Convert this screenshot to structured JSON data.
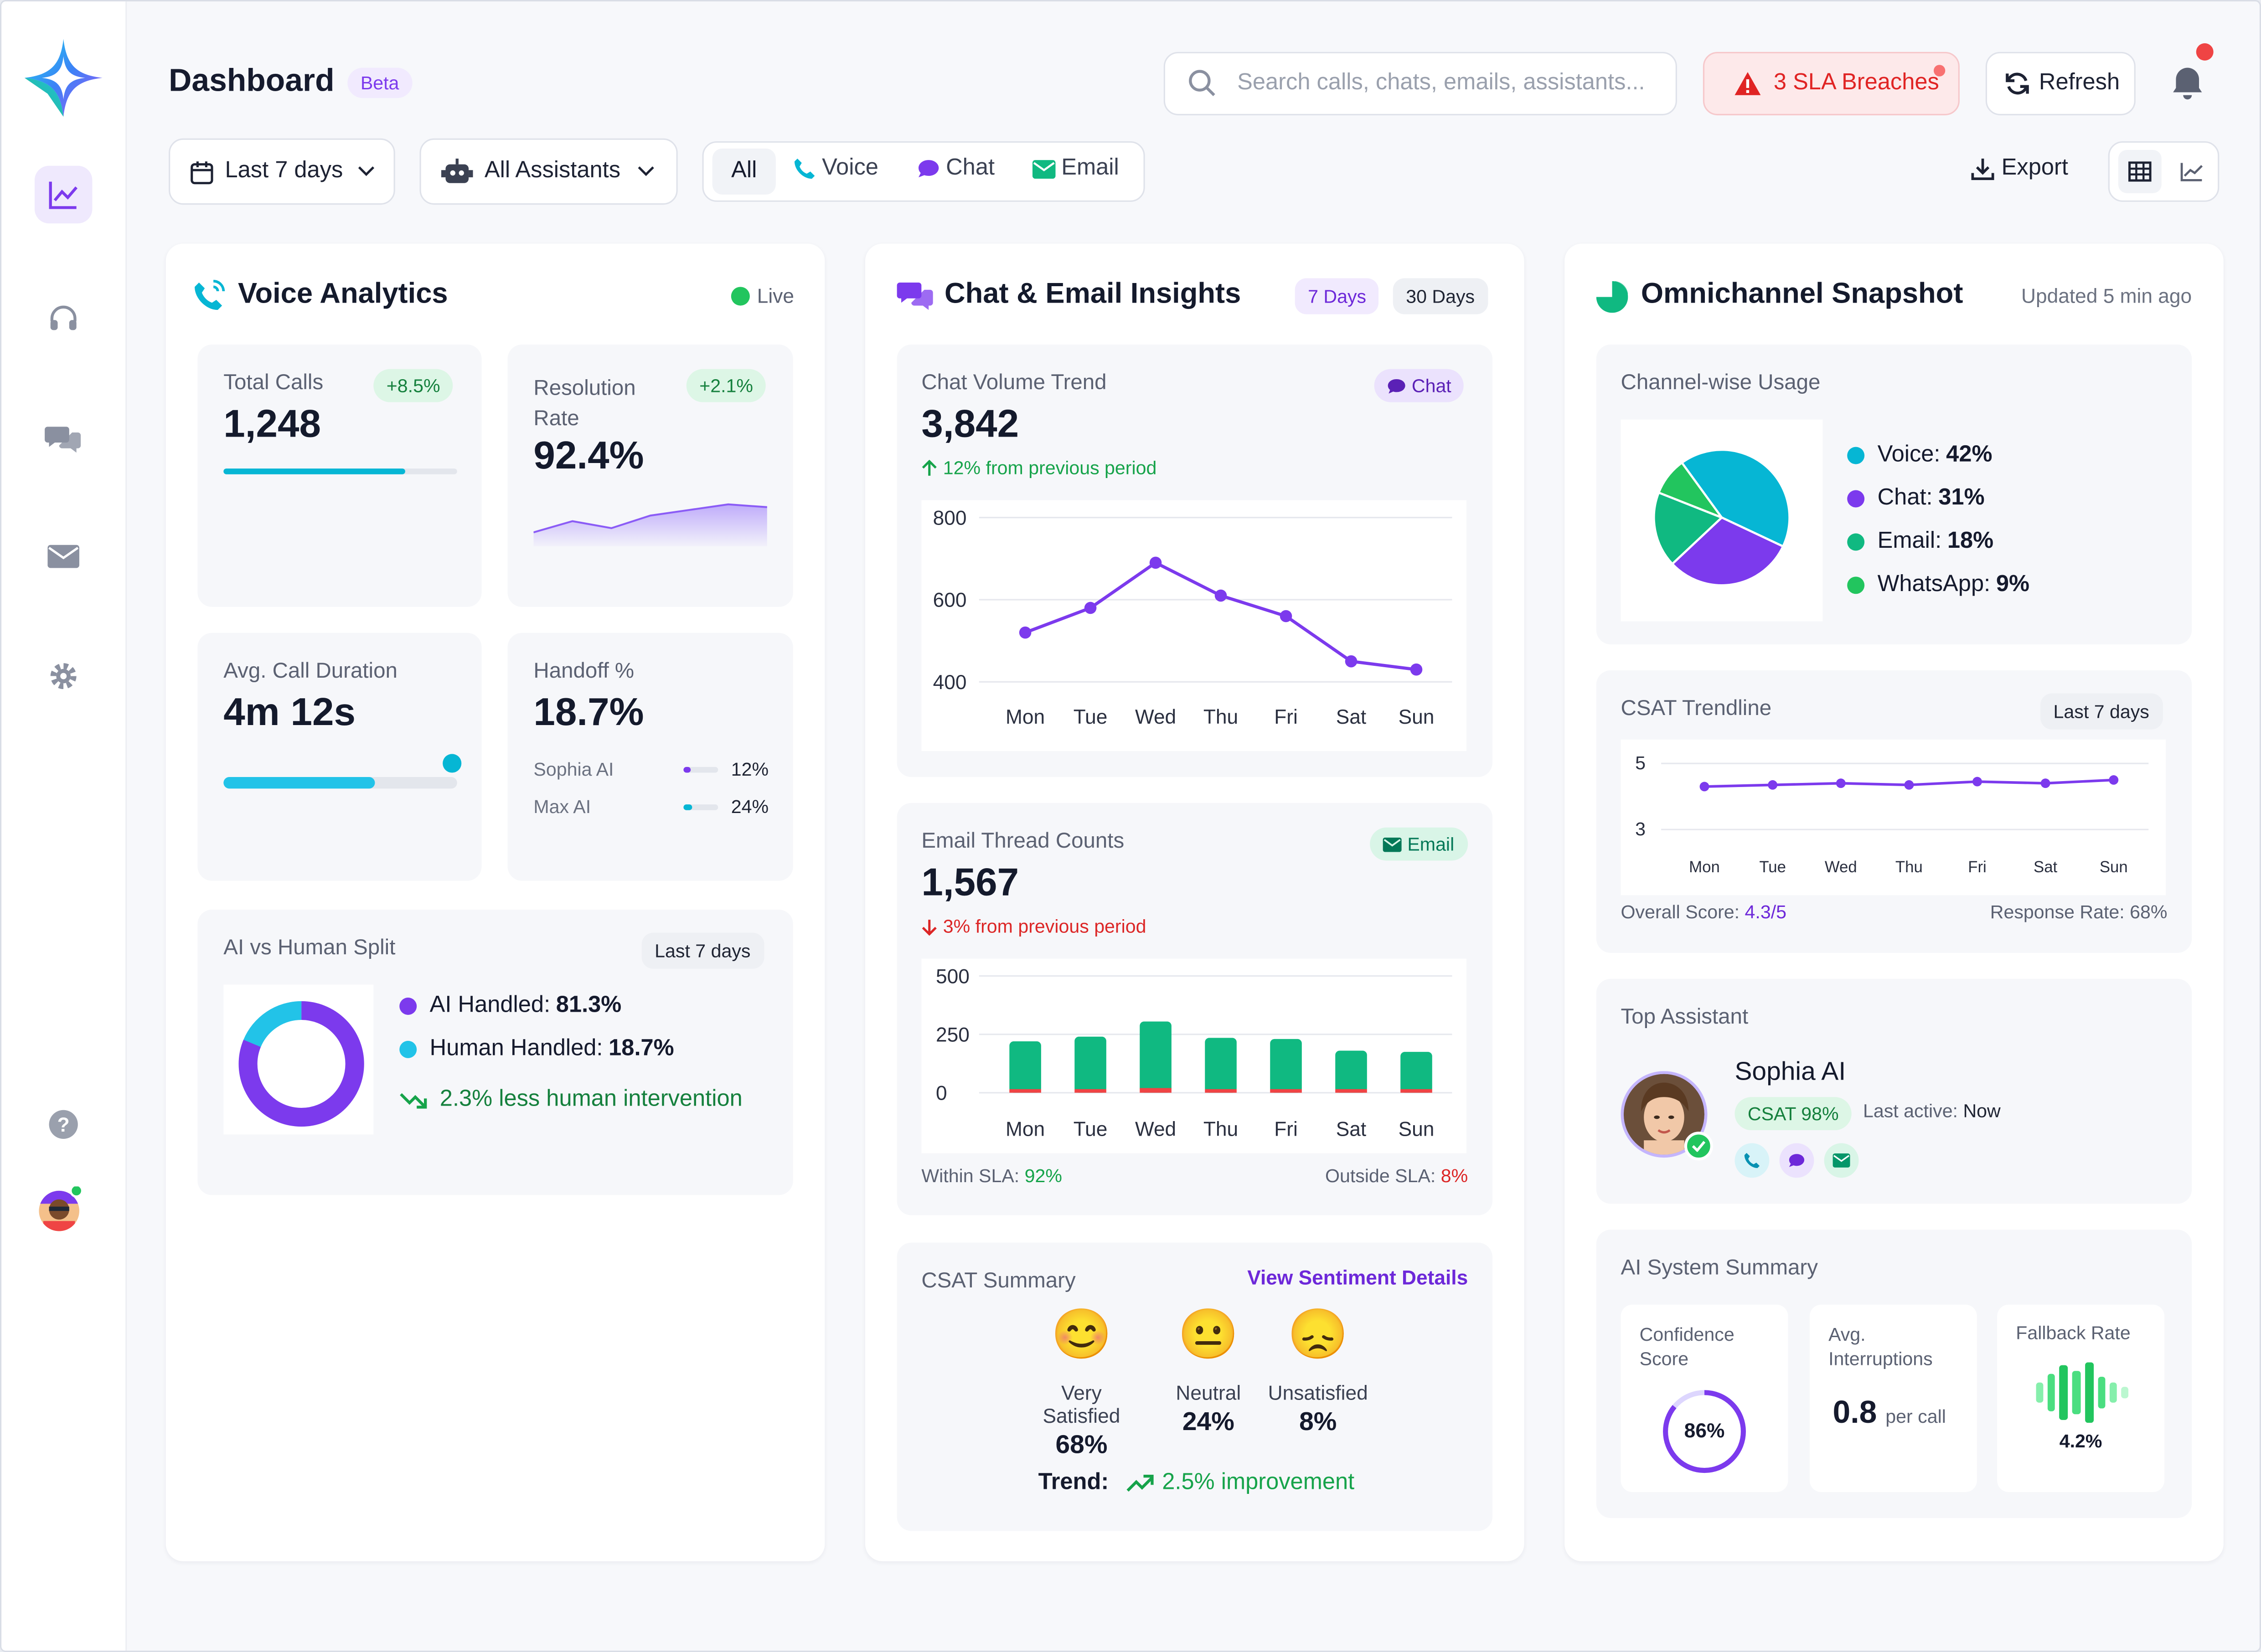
{
  "header": {
    "title": "Dashboard",
    "beta": "Beta",
    "search_placeholder": "Search calls, chats, emails, assistants...",
    "sla": "3 SLA Breaches",
    "refresh": "Refresh"
  },
  "filters": {
    "date": "Last 7 days",
    "assistants": "All Assistants",
    "channels": [
      "All",
      "Voice",
      "Chat",
      "Email"
    ],
    "export": "Export"
  },
  "voice": {
    "title": "Voice Analytics",
    "live": "Live",
    "total_calls_label": "Total Calls",
    "total_calls": "1,248",
    "total_calls_change": "+8.5%",
    "total_calls_progress": 0.78,
    "resolution_label": "Resolution Rate",
    "resolution": "92.4%",
    "resolution_change": "+2.1%",
    "avg_duration_label": "Avg. Call Duration",
    "avg_duration": "4m 12s",
    "avg_duration_progress": 0.65,
    "handoff_label": "Handoff %",
    "handoff": "18.7%",
    "handoff_rows": [
      {
        "name": "Sophia AI",
        "value": "12%",
        "fraction": 0.12
      },
      {
        "name": "Max AI",
        "value": "24%",
        "fraction": 0.24
      }
    ],
    "split_title": "AI vs Human Split",
    "split_period": "Last 7 days",
    "ai_label": "AI Handled: ",
    "ai_value": "81.3%",
    "human_label": "Human Handled: ",
    "human_value": "18.7%",
    "split_fraction_ai": 0.813,
    "trend_text": "2.3% less human intervention"
  },
  "chat": {
    "title": "Chat & Email Insights",
    "range_7": "7 Days",
    "range_30": "30 Days",
    "volume_label": "Chat Volume Trend",
    "volume_badge": "Chat",
    "volume": "3,842",
    "volume_change": "12% from previous period",
    "email_label": "Email Thread Counts",
    "email_badge": "Email",
    "email_value": "1,567",
    "email_change": "3% from previous period",
    "within_sla_label": "Within SLA: ",
    "within_sla": "92%",
    "outside_sla_label": "Outside SLA: ",
    "outside_sla": "8%",
    "csat_title": "CSAT Summary",
    "csat_link": "View Sentiment Details",
    "csat_items": [
      {
        "label": "Very Satisfied",
        "value": "68%",
        "emoji": "😊"
      },
      {
        "label": "Neutral",
        "value": "24%",
        "emoji": "😐"
      },
      {
        "label": "Unsatisfied",
        "value": "8%",
        "emoji": "😞"
      }
    ],
    "trend_label": "Trend:",
    "trend_value": "2.5% improvement"
  },
  "omni": {
    "title": "Omnichannel Snapshot",
    "updated": "Updated 5 min ago",
    "usage_title": "Channel-wise Usage",
    "usage": [
      {
        "name": "Voice: ",
        "value": "42%",
        "pct": 42,
        "color": "#06b6d4"
      },
      {
        "name": "Chat: ",
        "value": "31%",
        "pct": 31,
        "color": "#7c3aed"
      },
      {
        "name": "Email: ",
        "value": "18%",
        "pct": 18,
        "color": "#10b981"
      },
      {
        "name": "WhatsApp: ",
        "value": "9%",
        "pct": 9,
        "color": "#22c55e"
      }
    ],
    "csat_title": "CSAT Trendline",
    "csat_period": "Last 7 days",
    "overall_label": "Overall Score: ",
    "overall_value": "4.3/5",
    "response_rate": "Response Rate: 68%",
    "top_title": "Top Assistant",
    "top_name": "Sophia AI",
    "top_csat": "CSAT 98%",
    "last_active_label": "Last active: ",
    "last_active": "Now",
    "summary_title": "AI System Summary",
    "confidence_label": "Confidence Score",
    "confidence": "86%",
    "confidence_fraction": 0.86,
    "interrupt_label": "Avg. Interruptions",
    "interrupt_value": "0.8",
    "interrupt_unit": "per call",
    "fallback_label": "Fallback Rate",
    "fallback": "4.2%"
  },
  "chart_data": [
    {
      "type": "area",
      "title": "",
      "note": "Resolution Rate sparkline (no axes shown)",
      "values": [
        60,
        68,
        63,
        72,
        76,
        80,
        78
      ]
    },
    {
      "type": "line",
      "title": "Chat Volume Trend",
      "categories": [
        "Mon",
        "Tue",
        "Wed",
        "Thu",
        "Fri",
        "Sat",
        "Sun"
      ],
      "series": [
        {
          "values": [
            520,
            580,
            690,
            610,
            560,
            450,
            430
          ]
        }
      ],
      "ylim": [
        400,
        800
      ],
      "yticks": [
        800,
        600,
        400
      ],
      "color": "#7c3aed"
    },
    {
      "type": "bar",
      "title": "Email Thread Counts",
      "categories": [
        "Mon",
        "Tue",
        "Wed",
        "Thu",
        "Fri",
        "Sat",
        "Sun"
      ],
      "series": [
        {
          "values": [
            220,
            240,
            305,
            235,
            230,
            180,
            175
          ],
          "color": "#10b981"
        },
        {
          "values": [
            12,
            8,
            20,
            10,
            12,
            6,
            5
          ],
          "color": "#ef4444"
        }
      ],
      "ylim": [
        0,
        500
      ],
      "yticks": [
        500,
        250,
        0
      ]
    },
    {
      "type": "line",
      "title": "CSAT Trendline",
      "categories": [
        "Mon",
        "Tue",
        "Wed",
        "Thu",
        "Fri",
        "Sat",
        "Sun"
      ],
      "series": [
        {
          "values": [
            4.3,
            4.35,
            4.4,
            4.35,
            4.45,
            4.4,
            4.5
          ]
        }
      ],
      "ylim": [
        2.8,
        5.2
      ],
      "yticks": [
        5,
        3
      ],
      "color": "#7c3aed"
    },
    {
      "type": "pie",
      "title": "Channel-wise Usage",
      "labels": [
        "Voice",
        "Chat",
        "Email",
        "WhatsApp"
      ],
      "values": [
        42,
        31,
        18,
        9
      ]
    },
    {
      "type": "pie",
      "title": "AI vs Human Split",
      "labels": [
        "AI Handled",
        "Human Handled"
      ],
      "values": [
        81.3,
        18.7
      ]
    }
  ]
}
